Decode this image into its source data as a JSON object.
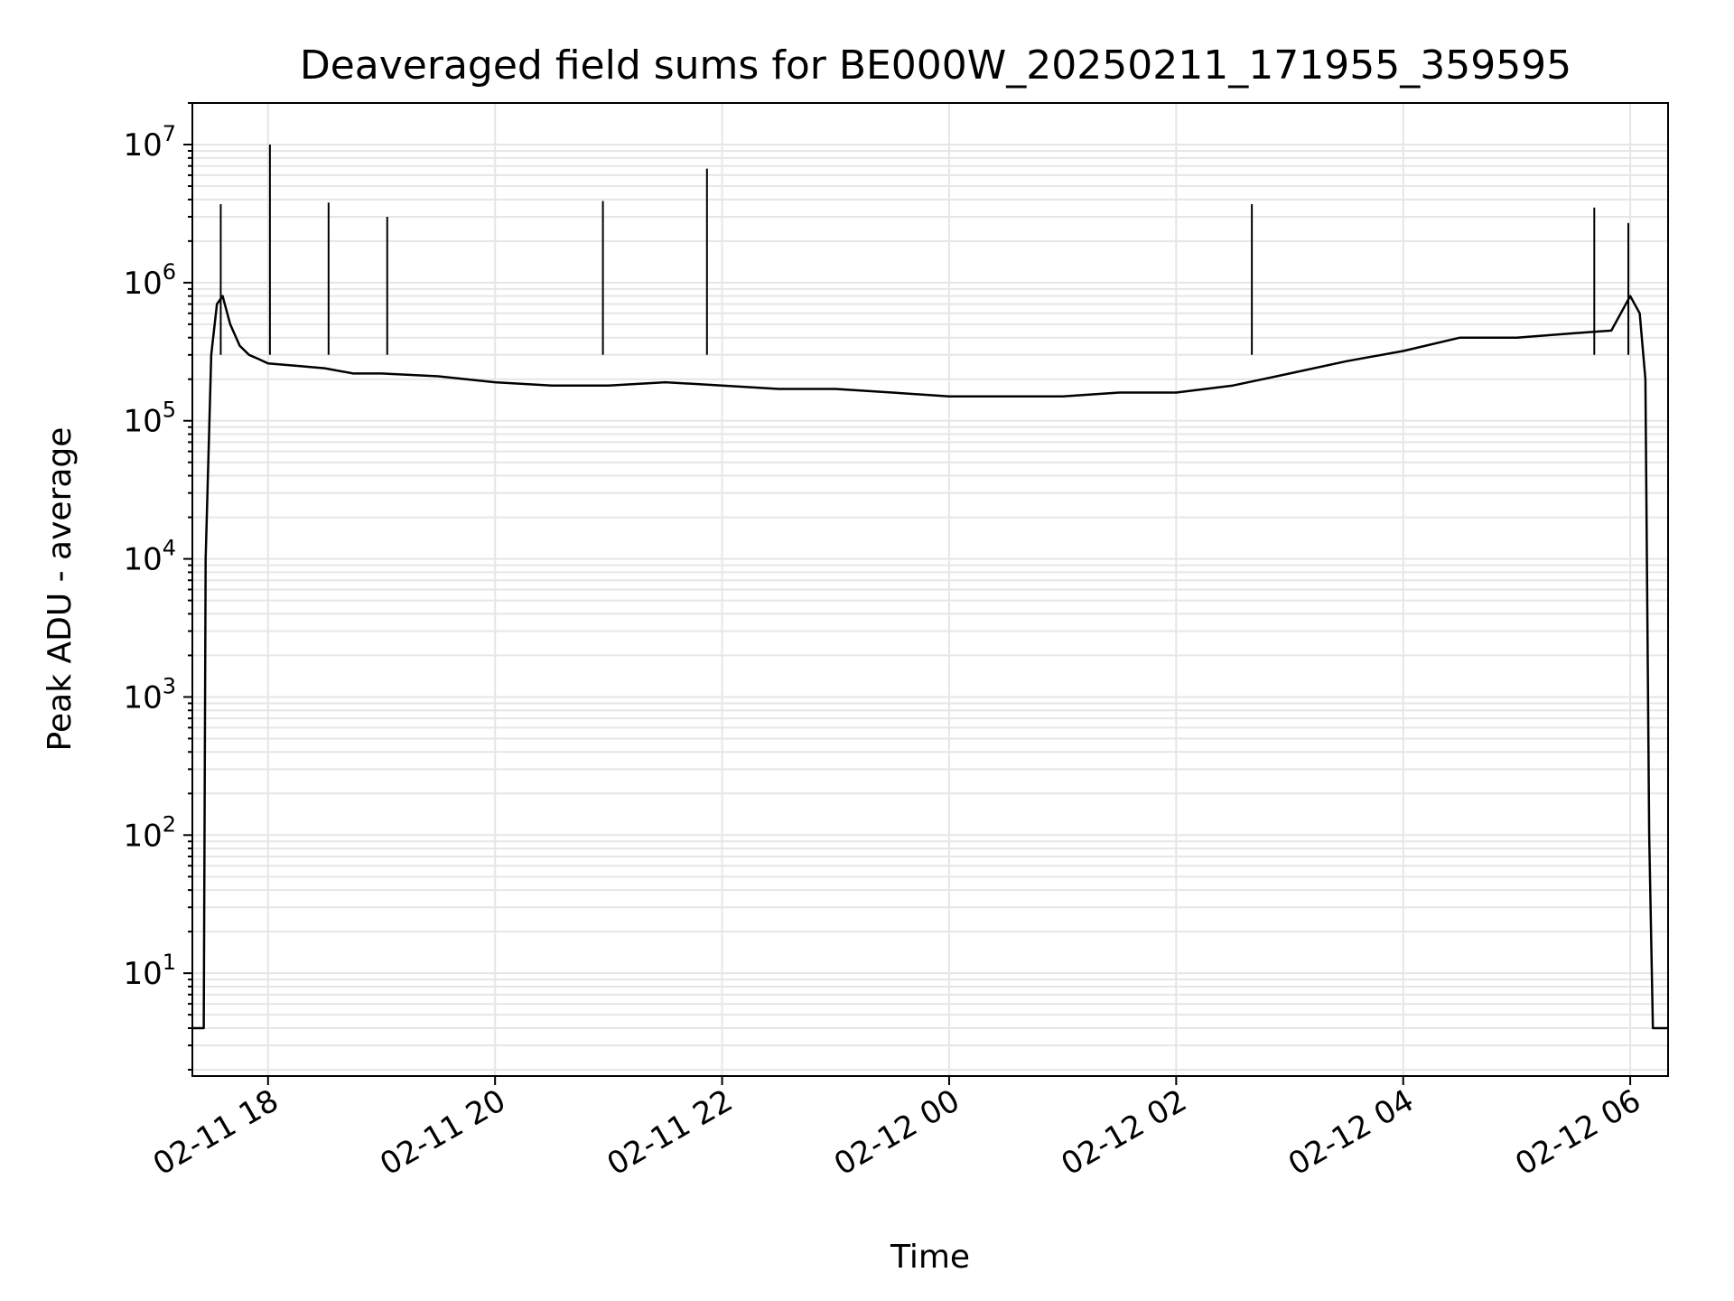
{
  "chart_data": {
    "type": "line",
    "title": "Deaveraged field sums for BE000W_20250211_171955_359595",
    "xlabel": "Time",
    "ylabel": "Peak ADU - average",
    "yscale": "log",
    "grid": true,
    "line_color": "#000000",
    "grid_color": "#e6e6e6",
    "xlim": [
      "2025-02-11 17:20",
      "2025-02-12 06:20"
    ],
    "ylim": [
      1.8,
      20000000
    ],
    "x_ticks": [
      {
        "value": "2025-02-11 18:00",
        "label": "02-11 18"
      },
      {
        "value": "2025-02-11 20:00",
        "label": "02-11 20"
      },
      {
        "value": "2025-02-11 22:00",
        "label": "02-11 22"
      },
      {
        "value": "2025-02-12 00:00",
        "label": "02-12 00"
      },
      {
        "value": "2025-02-12 02:00",
        "label": "02-12 02"
      },
      {
        "value": "2025-02-12 04:00",
        "label": "02-12 04"
      },
      {
        "value": "2025-02-12 06:00",
        "label": "02-12 06"
      }
    ],
    "y_ticks": [
      {
        "value": 10,
        "base": "10",
        "exp": "1"
      },
      {
        "value": 100,
        "base": "10",
        "exp": "2"
      },
      {
        "value": 1000,
        "base": "10",
        "exp": "3"
      },
      {
        "value": 10000,
        "base": "10",
        "exp": "4"
      },
      {
        "value": 100000,
        "base": "10",
        "exp": "5"
      },
      {
        "value": 1000000,
        "base": "10",
        "exp": "6"
      },
      {
        "value": 10000000,
        "base": "10",
        "exp": "7"
      }
    ],
    "series": [
      {
        "x": [
          "2025-02-11 17:20",
          "2025-02-11 17:26",
          "2025-02-11 17:27",
          "2025-02-11 17:30",
          "2025-02-11 17:33",
          "2025-02-11 17:36",
          "2025-02-11 17:40",
          "2025-02-11 17:45",
          "2025-02-11 17:50",
          "2025-02-11 17:55",
          "2025-02-11 18:00",
          "2025-02-11 18:15",
          "2025-02-11 18:30",
          "2025-02-11 18:45",
          "2025-02-11 19:00",
          "2025-02-11 19:30",
          "2025-02-11 20:00",
          "2025-02-11 20:30",
          "2025-02-11 21:00",
          "2025-02-11 21:30",
          "2025-02-11 22:00",
          "2025-02-11 22:30",
          "2025-02-11 23:00",
          "2025-02-11 23:30",
          "2025-02-12 00:00",
          "2025-02-12 00:30",
          "2025-02-12 01:00",
          "2025-02-12 01:30",
          "2025-02-12 02:00",
          "2025-02-12 02:30",
          "2025-02-12 03:00",
          "2025-02-12 03:30",
          "2025-02-12 04:00",
          "2025-02-12 04:30",
          "2025-02-12 05:00",
          "2025-02-12 05:30",
          "2025-02-12 05:50",
          "2025-02-12 06:00",
          "2025-02-12 06:05",
          "2025-02-12 06:08",
          "2025-02-12 06:10",
          "2025-02-12 06:12",
          "2025-02-12 06:20"
        ],
        "y": [
          4,
          4,
          10000,
          300000,
          700000,
          800000,
          500000,
          350000,
          300000,
          280000,
          260000,
          250000,
          240000,
          220000,
          220000,
          210000,
          190000,
          180000,
          180000,
          190000,
          180000,
          170000,
          170000,
          160000,
          150000,
          150000,
          150000,
          160000,
          160000,
          180000,
          220000,
          270000,
          320000,
          400000,
          400000,
          430000,
          450000,
          800000,
          600000,
          200000,
          100,
          4,
          4
        ]
      }
    ],
    "spikes": [
      {
        "x": "2025-02-11 17:35",
        "y": 3700000
      },
      {
        "x": "2025-02-11 18:01",
        "y": 10000000
      },
      {
        "x": "2025-02-11 18:32",
        "y": 3800000
      },
      {
        "x": "2025-02-11 19:03",
        "y": 3000000
      },
      {
        "x": "2025-02-11 20:57",
        "y": 3900000
      },
      {
        "x": "2025-02-11 21:52",
        "y": 6700000
      },
      {
        "x": "2025-02-12 02:40",
        "y": 3700000
      },
      {
        "x": "2025-02-12 05:41",
        "y": 3500000
      },
      {
        "x": "2025-02-12 05:59",
        "y": 2700000
      }
    ]
  }
}
